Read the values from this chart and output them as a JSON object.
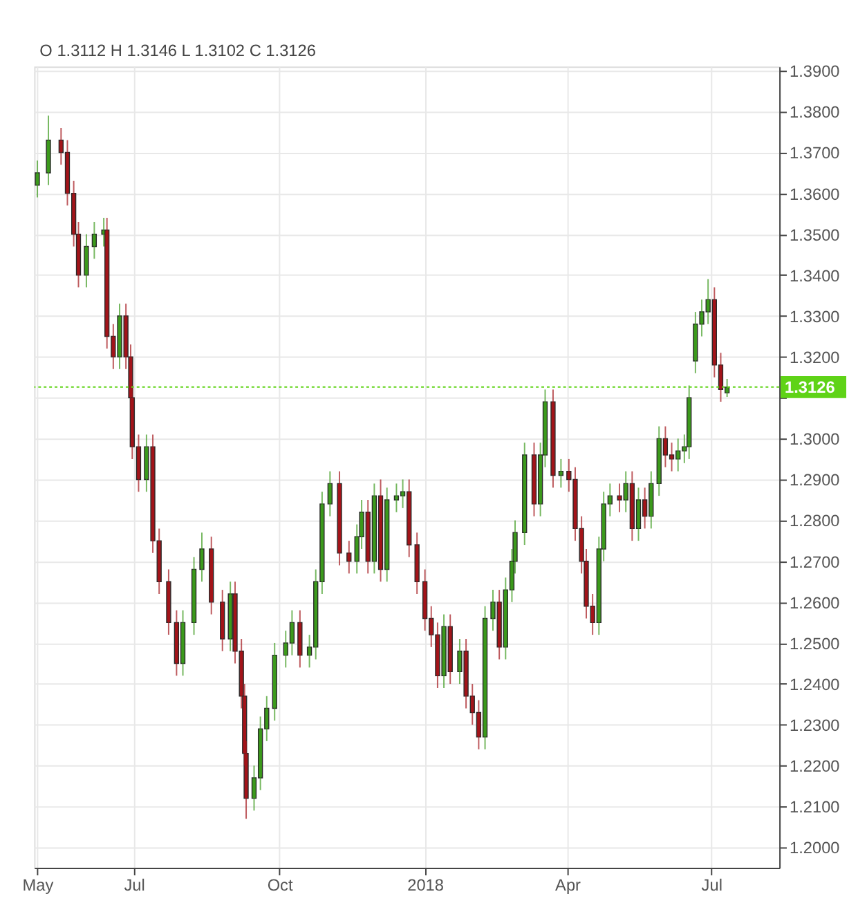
{
  "chart_data": {
    "type": "candlestick",
    "annotations": [
      "O 1.3112 H 1.3146 L 1.3102 C 1.3126"
    ],
    "x": [
      "2017-05-01",
      "2017-05-08",
      "2017-05-16",
      "2017-05-20",
      "2017-05-24",
      "2017-05-27",
      "2017-06-01",
      "2017-06-06",
      "2017-06-12",
      "2017-06-14",
      "2017-06-18",
      "2017-06-22",
      "2017-06-26",
      "2017-06-29",
      "2017-06-30",
      "2017-07-04",
      "2017-07-09",
      "2017-07-13",
      "2017-07-17",
      "2017-07-23",
      "2017-07-28",
      "2017-08-01",
      "2017-08-08",
      "2017-08-13",
      "2017-08-19",
      "2017-08-26",
      "2017-08-31",
      "2017-09-03",
      "2017-09-07",
      "2017-09-09",
      "2017-09-10",
      "2017-09-15",
      "2017-09-19",
      "2017-09-23",
      "2017-09-28",
      "2017-10-05",
      "2017-10-09",
      "2017-10-14",
      "2017-10-20",
      "2017-10-24",
      "2017-10-28",
      "2017-11-02",
      "2017-11-08",
      "2017-11-14",
      "2017-11-19",
      "2017-11-22",
      "2017-11-26",
      "2017-11-30",
      "2017-12-04",
      "2017-12-08",
      "2017-12-14",
      "2017-12-18",
      "2017-12-22",
      "2017-12-27",
      "2018-01-01",
      "2018-01-05",
      "2018-01-09",
      "2018-01-13",
      "2018-01-17",
      "2018-01-23",
      "2018-01-27",
      "2018-01-31",
      "2018-02-04",
      "2018-02-08",
      "2018-02-13",
      "2018-02-17",
      "2018-02-21",
      "2018-02-25",
      "2018-02-27",
      "2018-03-05",
      "2018-03-11",
      "2018-03-15",
      "2018-03-18",
      "2018-03-23",
      "2018-03-28",
      "2018-04-02",
      "2018-04-06",
      "2018-04-10",
      "2018-04-13",
      "2018-04-17",
      "2018-04-21",
      "2018-04-24",
      "2018-04-28",
      "2018-05-04",
      "2018-05-08",
      "2018-05-12",
      "2018-05-16",
      "2018-05-20",
      "2018-05-24",
      "2018-05-29",
      "2018-06-02",
      "2018-06-06",
      "2018-06-10",
      "2018-06-14",
      "2018-06-17",
      "2018-06-21",
      "2018-06-25",
      "2018-06-29",
      "2018-07-03",
      "2018-07-07",
      "2018-07-11"
    ],
    "ohlc": [
      [
        1.362,
        1.368,
        1.359,
        1.365
      ],
      [
        1.365,
        1.379,
        1.362,
        1.373
      ],
      [
        1.373,
        1.376,
        1.367,
        1.37
      ],
      [
        1.37,
        1.373,
        1.357,
        1.36
      ],
      [
        1.36,
        1.363,
        1.347,
        1.35
      ],
      [
        1.35,
        1.353,
        1.337,
        1.34
      ],
      [
        1.34,
        1.35,
        1.337,
        1.347
      ],
      [
        1.347,
        1.353,
        1.344,
        1.35
      ],
      [
        1.35,
        1.354,
        1.347,
        1.351
      ],
      [
        1.351,
        1.354,
        1.322,
        1.325
      ],
      [
        1.325,
        1.328,
        1.317,
        1.32
      ],
      [
        1.32,
        1.333,
        1.317,
        1.33
      ],
      [
        1.33,
        1.333,
        1.317,
        1.32
      ],
      [
        1.32,
        1.323,
        1.307,
        1.31
      ],
      [
        1.31,
        1.313,
        1.295,
        1.298
      ],
      [
        1.298,
        1.301,
        1.287,
        1.29
      ],
      [
        1.29,
        1.301,
        1.287,
        1.298
      ],
      [
        1.298,
        1.301,
        1.272,
        1.275
      ],
      [
        1.275,
        1.278,
        1.262,
        1.265
      ],
      [
        1.265,
        1.268,
        1.252,
        1.255
      ],
      [
        1.255,
        1.258,
        1.242,
        1.245
      ],
      [
        1.245,
        1.258,
        1.242,
        1.255
      ],
      [
        1.255,
        1.271,
        1.252,
        1.268
      ],
      [
        1.268,
        1.277,
        1.265,
        1.273
      ],
      [
        1.273,
        1.276,
        1.257,
        1.26
      ],
      [
        1.26,
        1.263,
        1.248,
        1.251
      ],
      [
        1.251,
        1.265,
        1.248,
        1.262
      ],
      [
        1.262,
        1.265,
        1.245,
        1.248
      ],
      [
        1.248,
        1.251,
        1.234,
        1.237
      ],
      [
        1.237,
        1.24,
        1.22,
        1.223
      ],
      [
        1.223,
        1.226,
        1.207,
        1.212
      ],
      [
        1.212,
        1.22,
        1.209,
        1.217
      ],
      [
        1.217,
        1.232,
        1.214,
        1.229
      ],
      [
        1.229,
        1.237,
        1.226,
        1.234
      ],
      [
        1.234,
        1.25,
        1.231,
        1.247
      ],
      [
        1.247,
        1.253,
        1.244,
        1.25
      ],
      [
        1.25,
        1.258,
        1.247,
        1.255
      ],
      [
        1.255,
        1.258,
        1.244,
        1.247
      ],
      [
        1.247,
        1.252,
        1.244,
        1.249
      ],
      [
        1.249,
        1.268,
        1.246,
        1.265
      ],
      [
        1.265,
        1.287,
        1.262,
        1.284
      ],
      [
        1.284,
        1.292,
        1.281,
        1.289
      ],
      [
        1.289,
        1.292,
        1.269,
        1.272
      ],
      [
        1.272,
        1.275,
        1.267,
        1.27
      ],
      [
        1.27,
        1.279,
        1.267,
        1.276
      ],
      [
        1.276,
        1.285,
        1.273,
        1.282
      ],
      [
        1.282,
        1.285,
        1.267,
        1.27
      ],
      [
        1.27,
        1.289,
        1.267,
        1.286
      ],
      [
        1.286,
        1.29,
        1.265,
        1.268
      ],
      [
        1.268,
        1.288,
        1.265,
        1.285
      ],
      [
        1.285,
        1.289,
        1.282,
        1.286
      ],
      [
        1.286,
        1.29,
        1.283,
        1.287
      ],
      [
        1.287,
        1.29,
        1.271,
        1.274
      ],
      [
        1.274,
        1.277,
        1.262,
        1.265
      ],
      [
        1.265,
        1.268,
        1.253,
        1.256
      ],
      [
        1.256,
        1.259,
        1.249,
        1.252
      ],
      [
        1.252,
        1.255,
        1.239,
        1.242
      ],
      [
        1.242,
        1.257,
        1.239,
        1.254
      ],
      [
        1.254,
        1.257,
        1.24,
        1.243
      ],
      [
        1.243,
        1.251,
        1.24,
        1.248
      ],
      [
        1.248,
        1.251,
        1.234,
        1.237
      ],
      [
        1.237,
        1.24,
        1.23,
        1.233
      ],
      [
        1.233,
        1.236,
        1.224,
        1.227
      ],
      [
        1.227,
        1.259,
        1.224,
        1.256
      ],
      [
        1.256,
        1.263,
        1.253,
        1.26
      ],
      [
        1.26,
        1.263,
        1.246,
        1.249
      ],
      [
        1.249,
        1.266,
        1.246,
        1.263
      ],
      [
        1.263,
        1.273,
        1.26,
        1.27
      ],
      [
        1.27,
        1.28,
        1.267,
        1.277
      ],
      [
        1.277,
        1.299,
        1.274,
        1.296
      ],
      [
        1.296,
        1.299,
        1.281,
        1.284
      ],
      [
        1.284,
        1.299,
        1.281,
        1.296
      ],
      [
        1.296,
        1.312,
        1.293,
        1.309
      ],
      [
        1.309,
        1.312,
        1.288,
        1.291
      ],
      [
        1.291,
        1.295,
        1.288,
        1.292
      ],
      [
        1.292,
        1.295,
        1.287,
        1.29
      ],
      [
        1.29,
        1.293,
        1.275,
        1.278
      ],
      [
        1.278,
        1.281,
        1.267,
        1.27
      ],
      [
        1.27,
        1.273,
        1.256,
        1.259
      ],
      [
        1.259,
        1.262,
        1.252,
        1.255
      ],
      [
        1.255,
        1.276,
        1.252,
        1.273
      ],
      [
        1.273,
        1.287,
        1.27,
        1.284
      ],
      [
        1.284,
        1.289,
        1.281,
        1.286
      ],
      [
        1.286,
        1.289,
        1.282,
        1.285
      ],
      [
        1.285,
        1.292,
        1.282,
        1.289
      ],
      [
        1.289,
        1.292,
        1.275,
        1.278
      ],
      [
        1.278,
        1.288,
        1.275,
        1.285
      ],
      [
        1.285,
        1.288,
        1.278,
        1.281
      ],
      [
        1.281,
        1.292,
        1.278,
        1.289
      ],
      [
        1.289,
        1.303,
        1.286,
        1.3
      ],
      [
        1.3,
        1.303,
        1.293,
        1.296
      ],
      [
        1.296,
        1.299,
        1.292,
        1.295
      ],
      [
        1.295,
        1.3,
        1.292,
        1.297
      ],
      [
        1.297,
        1.301,
        1.294,
        1.298
      ],
      [
        1.298,
        1.313,
        1.295,
        1.31
      ],
      [
        1.319,
        1.331,
        1.316,
        1.328
      ],
      [
        1.328,
        1.334,
        1.325,
        1.331
      ],
      [
        1.331,
        1.339,
        1.328,
        1.334
      ],
      [
        1.334,
        1.337,
        1.315,
        1.318
      ],
      [
        1.318,
        1.321,
        1.309,
        1.312
      ],
      [
        1.3112,
        1.3146,
        1.3102,
        1.3126
      ]
    ],
    "xlim": [
      "2017-04-29",
      "2018-08-13"
    ],
    "xticks": [
      {
        "value": "2017-05-01",
        "label": "May"
      },
      {
        "value": "2017-07-01",
        "label": "Jul"
      },
      {
        "value": "2017-10-01",
        "label": "Oct"
      },
      {
        "value": "2018-01-01",
        "label": "2018"
      },
      {
        "value": "2018-04-01",
        "label": "Apr"
      },
      {
        "value": "2018-07-01",
        "label": "Jul"
      }
    ],
    "ylim": [
      1.195,
      1.391
    ],
    "yticks": [
      {
        "value": 1.2,
        "label": "1.2000"
      },
      {
        "value": 1.21,
        "label": "1.2100"
      },
      {
        "value": 1.22,
        "label": "1.2200"
      },
      {
        "value": 1.23,
        "label": "1.2300"
      },
      {
        "value": 1.24,
        "label": "1.2400"
      },
      {
        "value": 1.25,
        "label": "1.2500"
      },
      {
        "value": 1.26,
        "label": "1.2600"
      },
      {
        "value": 1.27,
        "label": "1.2700"
      },
      {
        "value": 1.28,
        "label": "1.2800"
      },
      {
        "value": 1.29,
        "label": "1.2900"
      },
      {
        "value": 1.3,
        "label": "1.3000"
      },
      {
        "value": 1.31,
        "label": null
      },
      {
        "value": 1.32,
        "label": "1.3200"
      },
      {
        "value": 1.33,
        "label": "1.3300"
      },
      {
        "value": 1.34,
        "label": "1.3400"
      },
      {
        "value": 1.35,
        "label": "1.3500"
      },
      {
        "value": 1.36,
        "label": "1.3600"
      },
      {
        "value": 1.37,
        "label": "1.3700"
      },
      {
        "value": 1.38,
        "label": "1.3800"
      },
      {
        "value": 1.39,
        "label": "1.3900"
      }
    ],
    "ref_lines": [
      {
        "axis": "y",
        "value": 1.3126,
        "label": "1.3126",
        "color": "#5fd317",
        "line_style": "dotted"
      }
    ],
    "grid": true
  }
}
